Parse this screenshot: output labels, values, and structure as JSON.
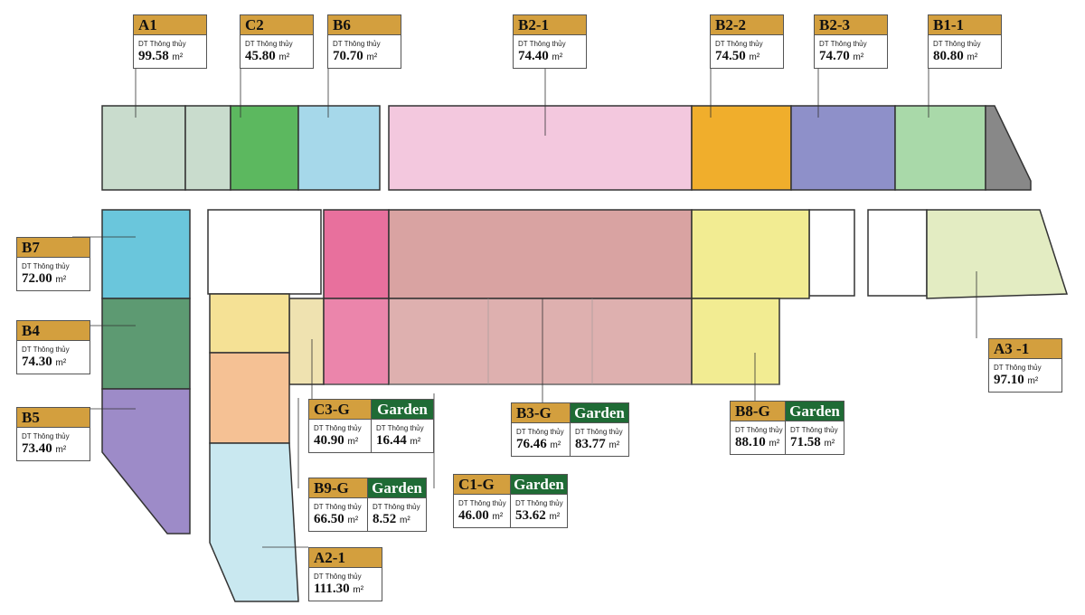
{
  "area_label": "DT Thông thủy",
  "unit": "m²",
  "garden_label": "Garden",
  "colors": {
    "label_header": "#d39f3e",
    "garden_header": "#1f6b35"
  },
  "units": [
    {
      "code": "A1",
      "area": "99.58",
      "color": "#c9dccd"
    },
    {
      "code": "C2",
      "area": "45.80",
      "color": "#5cb85f"
    },
    {
      "code": "B6",
      "area": "70.70",
      "color": "#a6d8ea"
    },
    {
      "code": "B2-1",
      "area": "74.40",
      "color": "#f3c8de"
    },
    {
      "code": "B2-2",
      "area": "74.50",
      "color": "#f0ae2c"
    },
    {
      "code": "B2-3",
      "area": "74.70",
      "color": "#8e90c9"
    },
    {
      "code": "B1-1",
      "area": "80.80",
      "color": "#a9d9a9"
    },
    {
      "code": "B7",
      "area": "72.00",
      "color": "#6ac6dc"
    },
    {
      "code": "B4",
      "area": "74.30",
      "color": "#5d9a72"
    },
    {
      "code": "B5",
      "area": "73.40",
      "color": "#9d8bc8"
    },
    {
      "code": "A3 -1",
      "area": "97.10",
      "color": "#e3ecc2"
    },
    {
      "code": "C3-G",
      "area": "40.90",
      "garden": "16.44",
      "color": "#f5e195"
    },
    {
      "code": "B3-G",
      "area": "76.46",
      "garden": "83.77",
      "color": "#d9a3a2"
    },
    {
      "code": "B8-G",
      "area": "88.10",
      "garden": "71.58",
      "color": "#f2ec92"
    },
    {
      "code": "B9-G",
      "area": "66.50",
      "garden": "8.52",
      "color": "#f5c194"
    },
    {
      "code": "C1-G",
      "area": "46.00",
      "garden": "53.62",
      "color": "#e8709d"
    },
    {
      "code": "A2-1",
      "area": "111.30",
      "color": "#c9e8f0"
    }
  ]
}
